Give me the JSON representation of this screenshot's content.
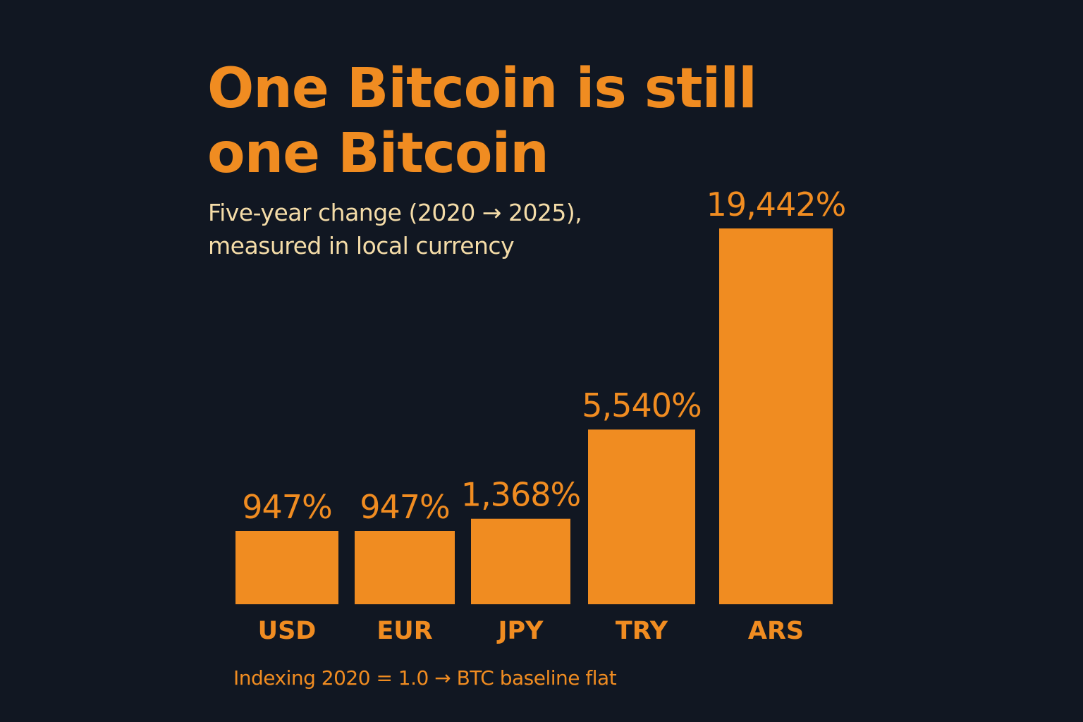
{
  "colors": {
    "background": "#111722",
    "accent": "#f08c21",
    "subtitle": "#f4dca8"
  },
  "chart_data": {
    "type": "bar",
    "title": "One Bitcoin is still one Bitcoin",
    "subtitle": "Five-year change (2020 → 2025), measured in local currency",
    "footnote": "Indexing 2020 = 1.0 → BTC baseline flat",
    "categories": [
      "USD",
      "EUR",
      "JPY",
      "TRY",
      "ARS"
    ],
    "values": [
      947,
      947,
      1368,
      5540,
      19442
    ],
    "value_labels": [
      "947%",
      "947%",
      "1,368%",
      "5,540%",
      "19,442%"
    ],
    "unit": "%",
    "xlabel": "",
    "ylabel": "",
    "grid": false,
    "legend": "none"
  }
}
